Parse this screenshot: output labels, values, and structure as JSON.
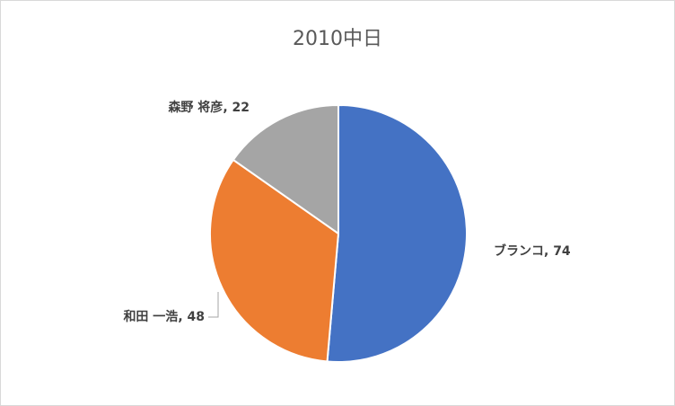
{
  "chart_data": {
    "type": "pie",
    "title": "2010中日",
    "categories": [
      "ブランコ",
      "和田 一浩",
      "森野 将彦"
    ],
    "values": [
      74,
      48,
      22
    ],
    "value_labels": [
      ", 74",
      ", 48",
      ", 22"
    ],
    "colors": [
      "#4472c4",
      "#ed7d31",
      "#a5a5a5"
    ]
  }
}
